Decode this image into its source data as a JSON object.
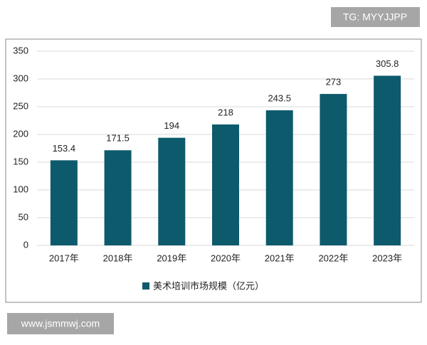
{
  "chart_data": {
    "type": "bar",
    "categories": [
      "2017年",
      "2018年",
      "2019年",
      "2020年",
      "2021年",
      "2022年",
      "2023年"
    ],
    "series": [
      {
        "name": "美术培训市场规模（亿元）",
        "color": "#0e5a6d",
        "values": [
          153.4,
          171.5,
          194,
          218,
          243.5,
          273,
          305.8
        ]
      }
    ],
    "ylim": [
      0,
      350
    ],
    "yticks": [
      0,
      50,
      100,
      150,
      200,
      250,
      300,
      350
    ],
    "grid": true,
    "legend": "bottom"
  },
  "watermarks": {
    "top": "TG: MYYJJPP",
    "bottom": "www.jsmmwj.com"
  }
}
